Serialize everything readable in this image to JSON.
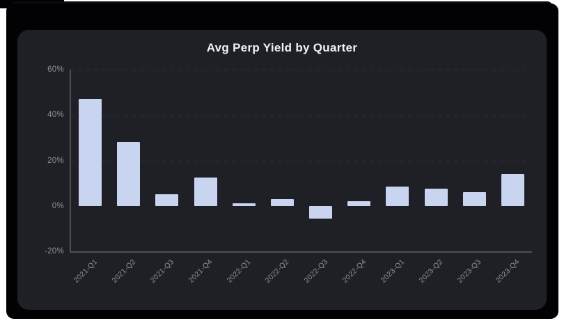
{
  "window": {
    "page_background": "#ffffff",
    "frame_color": "#020204",
    "panel_color": "#1e2025"
  },
  "chart_data": {
    "type": "bar",
    "title": "Avg Perp Yield by Quarter",
    "categories": [
      "2021-Q1",
      "2021-Q2",
      "2021-Q3",
      "2021-Q4",
      "2022-Q1",
      "2022-Q2",
      "2022-Q3",
      "2022-Q4",
      "2023-Q1",
      "2023-Q2",
      "2023-Q3",
      "2023-Q4"
    ],
    "values": [
      47,
      28,
      5,
      12.5,
      1,
      3,
      -5.5,
      2,
      8.5,
      7.5,
      6,
      14
    ],
    "xlabel": "",
    "ylabel": "",
    "ylim": [
      -20,
      60
    ],
    "y_tick_values": [
      60,
      40,
      20,
      0,
      -20
    ],
    "y_tick_labels": [
      "60%",
      "40%",
      "20%",
      "0%",
      "-20%"
    ],
    "grid_lines_at": [
      60,
      40,
      20
    ],
    "grid_style": "dashed horizontal",
    "legend": "none",
    "colors": {
      "bar": "#c9d4f1",
      "axis": "#4c4f58",
      "grid": "#2e313a",
      "tick_text": "#8d909b",
      "title_text": "#f1f2f5"
    }
  }
}
